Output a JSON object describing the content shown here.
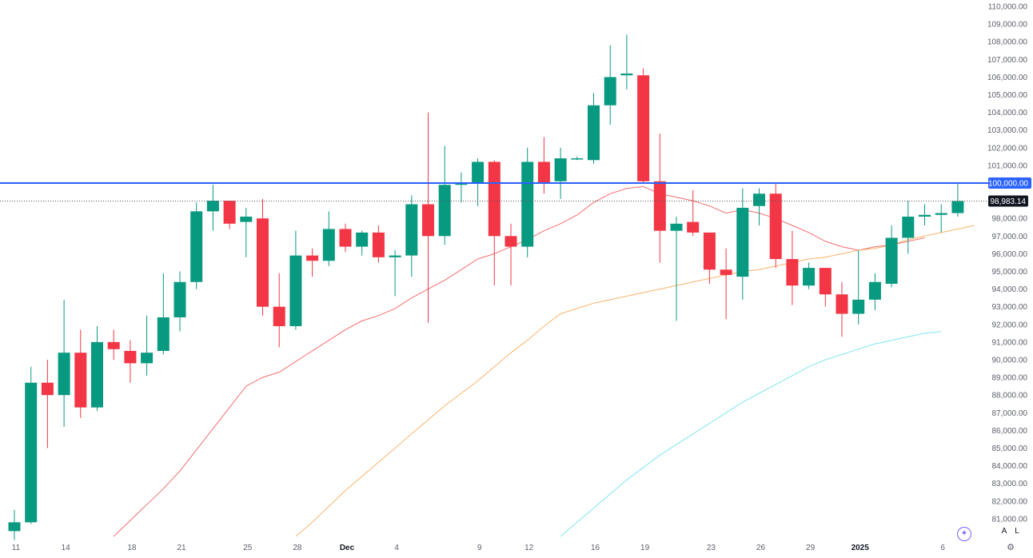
{
  "chart_data": {
    "type": "candlestick",
    "price_axis": {
      "min": 80000,
      "max": 110000,
      "step": 1000,
      "tick_labels_from": 81000,
      "format": "0,0.00"
    },
    "time_axis": {
      "labels": [
        {
          "index": 0,
          "text": "11"
        },
        {
          "index": 3,
          "text": "14"
        },
        {
          "index": 7,
          "text": "18"
        },
        {
          "index": 10,
          "text": "21"
        },
        {
          "index": 14,
          "text": "25"
        },
        {
          "index": 17,
          "text": "28"
        },
        {
          "index": 20,
          "text": "Dec",
          "style": "bold"
        },
        {
          "index": 23,
          "text": "4"
        },
        {
          "index": 28,
          "text": "9"
        },
        {
          "index": 31,
          "text": "12"
        },
        {
          "index": 35,
          "text": "16"
        },
        {
          "index": 38,
          "text": "19"
        },
        {
          "index": 42,
          "text": "23"
        },
        {
          "index": 45,
          "text": "26"
        },
        {
          "index": 48,
          "text": "29"
        },
        {
          "index": 51,
          "text": "2025",
          "style": "bold"
        },
        {
          "index": 56,
          "text": "6"
        }
      ]
    },
    "candles": [
      {
        "o": 80300,
        "h": 81500,
        "l": 79800,
        "c": 80800
      },
      {
        "o": 80800,
        "h": 89600,
        "l": 80700,
        "c": 88700
      },
      {
        "o": 88700,
        "h": 90000,
        "l": 85000,
        "c": 88000
      },
      {
        "o": 88000,
        "h": 93400,
        "l": 86200,
        "c": 90400
      },
      {
        "o": 90400,
        "h": 91700,
        "l": 86700,
        "c": 87300
      },
      {
        "o": 87300,
        "h": 91900,
        "l": 87100,
        "c": 91000
      },
      {
        "o": 91000,
        "h": 91700,
        "l": 90000,
        "c": 90600
      },
      {
        "o": 90500,
        "h": 91100,
        "l": 88700,
        "c": 89800
      },
      {
        "o": 89800,
        "h": 92500,
        "l": 89100,
        "c": 90400
      },
      {
        "o": 90500,
        "h": 94900,
        "l": 90300,
        "c": 92400
      },
      {
        "o": 92400,
        "h": 95000,
        "l": 91600,
        "c": 94400
      },
      {
        "o": 94400,
        "h": 98900,
        "l": 94000,
        "c": 98400
      },
      {
        "o": 98400,
        "h": 99900,
        "l": 97300,
        "c": 99000
      },
      {
        "o": 99000,
        "h": 99000,
        "l": 97400,
        "c": 97700
      },
      {
        "o": 97800,
        "h": 98600,
        "l": 95800,
        "c": 98100
      },
      {
        "o": 98000,
        "h": 99100,
        "l": 92500,
        "c": 93000
      },
      {
        "o": 93000,
        "h": 94900,
        "l": 90700,
        "c": 91900
      },
      {
        "o": 91900,
        "h": 97300,
        "l": 91700,
        "c": 95900
      },
      {
        "o": 95900,
        "h": 96300,
        "l": 94700,
        "c": 95600
      },
      {
        "o": 95600,
        "h": 98400,
        "l": 95300,
        "c": 97400
      },
      {
        "o": 97400,
        "h": 97700,
        "l": 96100,
        "c": 96400
      },
      {
        "o": 96400,
        "h": 97300,
        "l": 95900,
        "c": 97200
      },
      {
        "o": 97200,
        "h": 97600,
        "l": 95500,
        "c": 95800
      },
      {
        "o": 95800,
        "h": 96200,
        "l": 93600,
        "c": 95900
      },
      {
        "o": 95900,
        "h": 99300,
        "l": 94700,
        "c": 98800
      },
      {
        "o": 98800,
        "h": 104000,
        "l": 92100,
        "c": 97000
      },
      {
        "o": 97000,
        "h": 102100,
        "l": 96500,
        "c": 99900
      },
      {
        "o": 99900,
        "h": 100600,
        "l": 98900,
        "c": 100000
      },
      {
        "o": 100000,
        "h": 101400,
        "l": 98700,
        "c": 101200
      },
      {
        "o": 101200,
        "h": 101300,
        "l": 94200,
        "c": 97000
      },
      {
        "o": 97000,
        "h": 97700,
        "l": 94200,
        "c": 96400
      },
      {
        "o": 96400,
        "h": 102000,
        "l": 95800,
        "c": 101200
      },
      {
        "o": 101200,
        "h": 102600,
        "l": 99400,
        "c": 100000
      },
      {
        "o": 100100,
        "h": 102000,
        "l": 99100,
        "c": 101400
      },
      {
        "o": 101400,
        "h": 101500,
        "l": 101300,
        "c": 101400
      },
      {
        "o": 101300,
        "h": 105100,
        "l": 101100,
        "c": 104400
      },
      {
        "o": 104400,
        "h": 107800,
        "l": 103300,
        "c": 106000
      },
      {
        "o": 106100,
        "h": 108400,
        "l": 105300,
        "c": 106200
      },
      {
        "o": 106100,
        "h": 106500,
        "l": 100000,
        "c": 100100
      },
      {
        "o": 100100,
        "h": 102800,
        "l": 95500,
        "c": 97300
      },
      {
        "o": 97300,
        "h": 98100,
        "l": 92200,
        "c": 97700
      },
      {
        "o": 97800,
        "h": 99600,
        "l": 97000,
        "c": 97200
      },
      {
        "o": 97200,
        "h": 97200,
        "l": 94300,
        "c": 95100
      },
      {
        "o": 95100,
        "h": 96300,
        "l": 92300,
        "c": 94800
      },
      {
        "o": 94700,
        "h": 99700,
        "l": 93400,
        "c": 98600
      },
      {
        "o": 98700,
        "h": 99700,
        "l": 97600,
        "c": 99400
      },
      {
        "o": 99400,
        "h": 100000,
        "l": 95200,
        "c": 95700
      },
      {
        "o": 95700,
        "h": 97300,
        "l": 93100,
        "c": 94200
      },
      {
        "o": 94200,
        "h": 95500,
        "l": 94000,
        "c": 95200
      },
      {
        "o": 95200,
        "h": 95200,
        "l": 93000,
        "c": 93700
      },
      {
        "o": 93700,
        "h": 94400,
        "l": 91300,
        "c": 92600
      },
      {
        "o": 92600,
        "h": 96200,
        "l": 92000,
        "c": 93400
      },
      {
        "o": 93400,
        "h": 94900,
        "l": 92800,
        "c": 94400
      },
      {
        "o": 94300,
        "h": 97600,
        "l": 94100,
        "c": 96900
      },
      {
        "o": 96900,
        "h": 99000,
        "l": 96000,
        "c": 98100
      },
      {
        "o": 98100,
        "h": 98800,
        "l": 97600,
        "c": 98200
      },
      {
        "o": 98200,
        "h": 98800,
        "l": 97200,
        "c": 98300
      },
      {
        "o": 98300,
        "h": 100000,
        "l": 98100,
        "c": 98983.14
      }
    ],
    "moving_averages": [
      {
        "color": "#f26d6d",
        "start_index": 6,
        "values": [
          80000,
          80900,
          81800,
          82700,
          83700,
          84900,
          86100,
          87300,
          88500,
          89000,
          89300,
          89900,
          90500,
          91100,
          91700,
          92200,
          92500,
          92900,
          93500,
          94000,
          94500,
          95100,
          95700,
          96000,
          96400,
          96800,
          97300,
          97700,
          98200,
          98900,
          99400,
          99700,
          99800,
          99400,
          99200,
          99000,
          98700,
          98300,
          98500,
          98300,
          98000,
          97600,
          97200,
          96700,
          96400,
          96200,
          96400,
          96500,
          96700,
          96900
        ]
      },
      {
        "color": "#fab36b",
        "start_index": 17,
        "values": [
          80000,
          80800,
          81700,
          82600,
          83400,
          84200,
          85000,
          85800,
          86600,
          87400,
          88100,
          88800,
          89600,
          90400,
          91100,
          91900,
          92600,
          92900,
          93200,
          93400,
          93600,
          93800,
          94000,
          94200,
          94400,
          94600,
          94800,
          95000,
          95100,
          95300,
          95500,
          95700,
          95800,
          96000,
          96200,
          96300,
          96500,
          96800,
          97000,
          97200,
          97400,
          97600
        ]
      },
      {
        "color": "#7fe6f0",
        "start_index": 33,
        "values": [
          80000,
          80800,
          81600,
          82400,
          83200,
          83900,
          84600,
          85200,
          85800,
          86400,
          87000,
          87600,
          88100,
          88600,
          89100,
          89600,
          90000,
          90300,
          90600,
          90900,
          91100,
          91300,
          91500,
          91600
        ]
      }
    ],
    "horizontal_line": {
      "value": 100000,
      "label": "100,000.00",
      "color": "#2962ff"
    },
    "last_price": {
      "value": 98983.14,
      "label": "98,983.14"
    },
    "colors": {
      "up": "#089981",
      "down": "#f23645",
      "axis_text": "#5d606b"
    }
  },
  "controls": {
    "auto_scale_label": "A",
    "log_scale_label": "L"
  }
}
